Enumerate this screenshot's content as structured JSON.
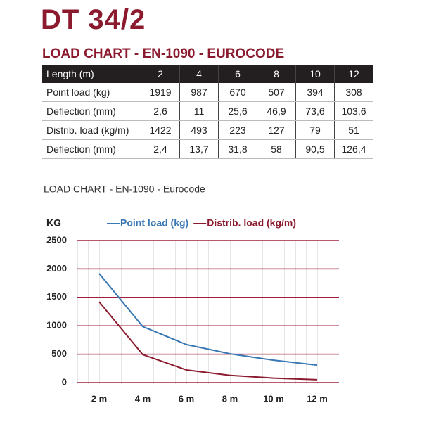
{
  "header": {
    "title": "DT 34/2",
    "subtitle": "LOAD CHART - EN-1090 - EUROCODE"
  },
  "table": {
    "header": [
      "Length (m)",
      "2",
      "4",
      "6",
      "8",
      "10",
      "12"
    ],
    "rows": [
      [
        "Point load (kg)",
        "1919",
        "987",
        "670",
        "507",
        "394",
        "308"
      ],
      [
        "Deflection (mm)",
        "2,6",
        "11",
        "25,6",
        "46,9",
        "73,6",
        "103,6"
      ],
      [
        "Distrib. load (kg/m)",
        "1422",
        "493",
        "223",
        "127",
        "79",
        "51"
      ],
      [
        "Deflection (mm)",
        "2,4",
        "13,7",
        "31,8",
        "58",
        "90,5",
        "126,4"
      ]
    ]
  },
  "chart_data": {
    "type": "line",
    "title": "LOAD CHART - EN-1090 - Eurocode",
    "y_label": "KG",
    "x": [
      2,
      4,
      6,
      8,
      10,
      12
    ],
    "series": [
      {
        "name": "Point load (kg)",
        "color": "#3a78b4",
        "values": [
          1919,
          987,
          670,
          507,
          394,
          308
        ]
      },
      {
        "name": "Distrib. load (kg/m)",
        "color": "#8b1a2e",
        "values": [
          1422,
          493,
          223,
          127,
          79,
          51
        ]
      }
    ],
    "xlim": [
      1,
      13
    ],
    "ylim": [
      0,
      2500
    ],
    "xticks": [
      {
        "value": 2,
        "label": "2 m"
      },
      {
        "value": 4,
        "label": "4 m"
      },
      {
        "value": 6,
        "label": "6 m"
      },
      {
        "value": 8,
        "label": "8 m"
      },
      {
        "value": 10,
        "label": "10 m"
      },
      {
        "value": 12,
        "label": "12 m"
      }
    ],
    "yticks": [
      0,
      500,
      1000,
      1500,
      2000,
      2500
    ],
    "grid": true,
    "grid_color": "#a0203a"
  }
}
